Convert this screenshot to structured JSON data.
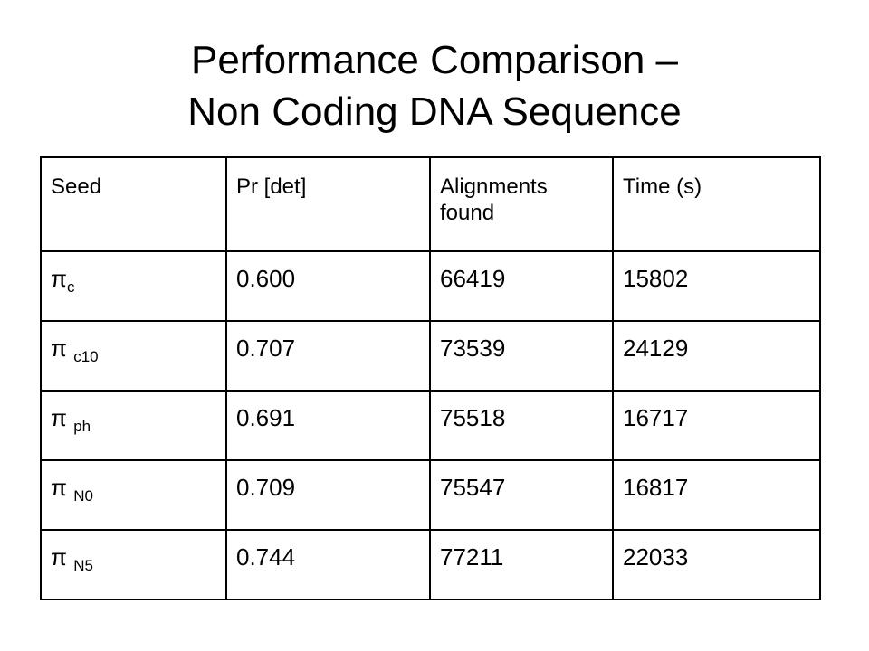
{
  "title": {
    "line1": "Performance Comparison –",
    "line2": "Non Coding DNA Sequence"
  },
  "table": {
    "headers": [
      "Seed",
      "Pr [det]",
      "Alignments found",
      "Time (s)"
    ],
    "rows": [
      {
        "seed_symbol": "π",
        "seed_sub": "c",
        "pr_det": "0.600",
        "alignments": "66419",
        "time": "15802"
      },
      {
        "seed_symbol": "π",
        "seed_sub": "c10",
        "pr_det": "0.707",
        "alignments": "73539",
        "time": "24129"
      },
      {
        "seed_symbol": "π",
        "seed_sub": "ph",
        "pr_det": "0.691",
        "alignments": "75518",
        "time": "16717"
      },
      {
        "seed_symbol": "π",
        "seed_sub": "N0",
        "pr_det": "0.709",
        "alignments": "75547",
        "time": "16817"
      },
      {
        "seed_symbol": "π",
        "seed_sub": "N5",
        "pr_det": "0.744",
        "alignments": "77211",
        "time": "22033"
      }
    ]
  }
}
